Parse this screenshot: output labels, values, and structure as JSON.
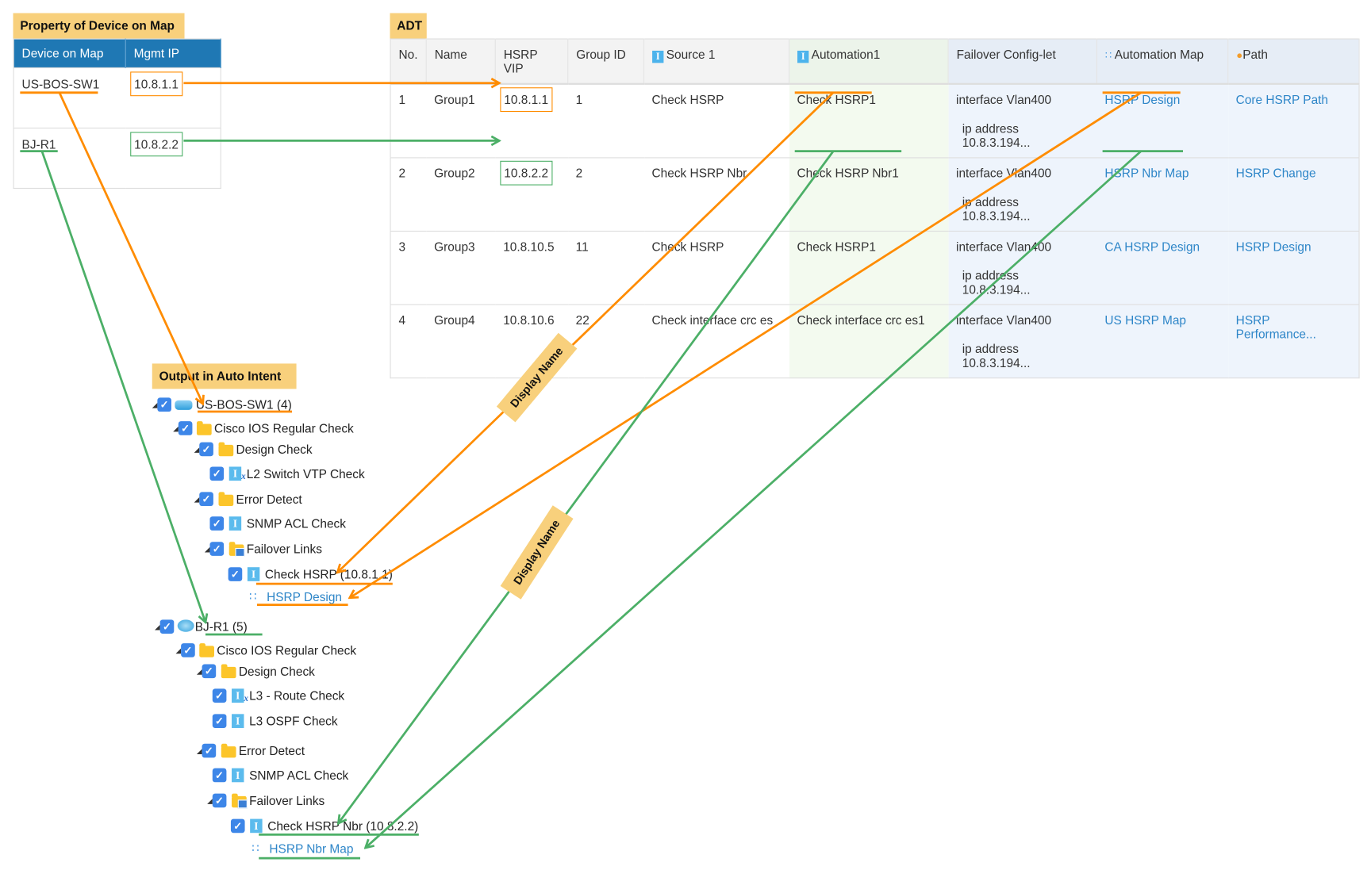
{
  "property_panel": {
    "title": "Property of Device on Map",
    "headers": [
      "Device on Map",
      "Mgmt IP"
    ],
    "rows": [
      {
        "device": "US-BOS-SW1",
        "ip": "10.8.1.1"
      },
      {
        "device": "BJ-R1",
        "ip": "10.8.2.2"
      }
    ]
  },
  "adt": {
    "title": "ADT",
    "headers": [
      "No.",
      "Name",
      "HSRP VIP",
      "Group ID",
      "Source 1",
      "Automation1",
      "Failover Config-let",
      "Automation Map",
      "Path"
    ],
    "rows": [
      {
        "no": "1",
        "name": "Group1",
        "vip": "10.8.1.1",
        "gid": "1",
        "source": "Check HSRP",
        "auto": "Check HSRP1",
        "cfg1": "interface Vlan400",
        "cfg2": "ip address 10.8.3.194...",
        "map": "HSRP Design",
        "path": "Core HSRP Path"
      },
      {
        "no": "2",
        "name": "Group2",
        "vip": "10.8.2.2",
        "gid": "2",
        "source": "Check HSRP Nbr",
        "auto": "Check HSRP Nbr1",
        "cfg1": "interface Vlan400",
        "cfg2": "ip address 10.8.3.194...",
        "map": "HSRP Nbr Map",
        "path": "HSRP Change"
      },
      {
        "no": "3",
        "name": "Group3",
        "vip": "10.8.10.5",
        "gid": "11",
        "source": "Check HSRP",
        "auto": "Check HSRP1",
        "cfg1": "interface Vlan400",
        "cfg2": "ip address 10.8.3.194...",
        "map": "CA HSRP Design",
        "path": "HSRP Design"
      },
      {
        "no": "4",
        "name": "Group4",
        "vip": "10.8.10.6",
        "gid": "22",
        "source": "Check interface crc es",
        "auto": "Check interface crc es1",
        "cfg1": "interface Vlan400",
        "cfg2": "ip address 10.8.3.194...",
        "map": "US HSRP Map",
        "path": "HSRP Performance..."
      }
    ]
  },
  "output": {
    "title": "Output in Auto Intent",
    "tree": [
      {
        "label": "US-BOS-SW1 (4)",
        "icon": "switch-icon",
        "expanded": true,
        "checked": true
      },
      {
        "label": "Cisco IOS Regular Check",
        "icon": "folder-icon",
        "expanded": true,
        "checked": true
      },
      {
        "label": "Design Check",
        "icon": "folder-icon",
        "expanded": true,
        "checked": true
      },
      {
        "label": "L2 Switch VTP Check",
        "icon": "intent-x-icon",
        "checked": true
      },
      {
        "label": "Error Detect",
        "icon": "folder-icon",
        "expanded": true,
        "checked": true
      },
      {
        "label": "SNMP ACL Check",
        "icon": "intent-icon",
        "checked": true
      },
      {
        "label": "Failover Links",
        "icon": "folder-table-icon",
        "expanded": true,
        "checked": true
      },
      {
        "label": "Check HSRP (10.8.1.1)",
        "icon": "intent-icon",
        "checked": true
      },
      {
        "label": "HSRP Design",
        "icon": "map-icon",
        "link": true
      },
      {
        "label": "BJ-R1 (5)",
        "icon": "router-icon",
        "expanded": true,
        "checked": true
      },
      {
        "label": "Cisco IOS Regular Check",
        "icon": "folder-icon",
        "expanded": true,
        "checked": true
      },
      {
        "label": "Design Check",
        "icon": "folder-icon",
        "expanded": true,
        "checked": true
      },
      {
        "label": "L3 - Route Check",
        "icon": "intent-x-icon",
        "checked": true
      },
      {
        "label": "L3 OSPF Check",
        "icon": "intent-icon",
        "checked": true
      },
      {
        "label": "Error Detect",
        "icon": "folder-icon",
        "expanded": true,
        "checked": true
      },
      {
        "label": "SNMP ACL Check",
        "icon": "intent-icon",
        "checked": true
      },
      {
        "label": "Failover Links",
        "icon": "folder-table-icon",
        "expanded": true,
        "checked": true
      },
      {
        "label": "Check HSRP Nbr (10.8.2.2)",
        "icon": "intent-icon",
        "checked": true
      },
      {
        "label": "HSRP Nbr Map",
        "icon": "map-icon",
        "link": true
      }
    ]
  },
  "annotations": {
    "display_name_1": "Display Name",
    "display_name_2": "Display Name"
  },
  "colors": {
    "orange": "#ff8c00",
    "green": "#4caf67",
    "label_bg": "#f8d07c",
    "header_blue": "#1f78b4",
    "link": "#2e86c8"
  }
}
